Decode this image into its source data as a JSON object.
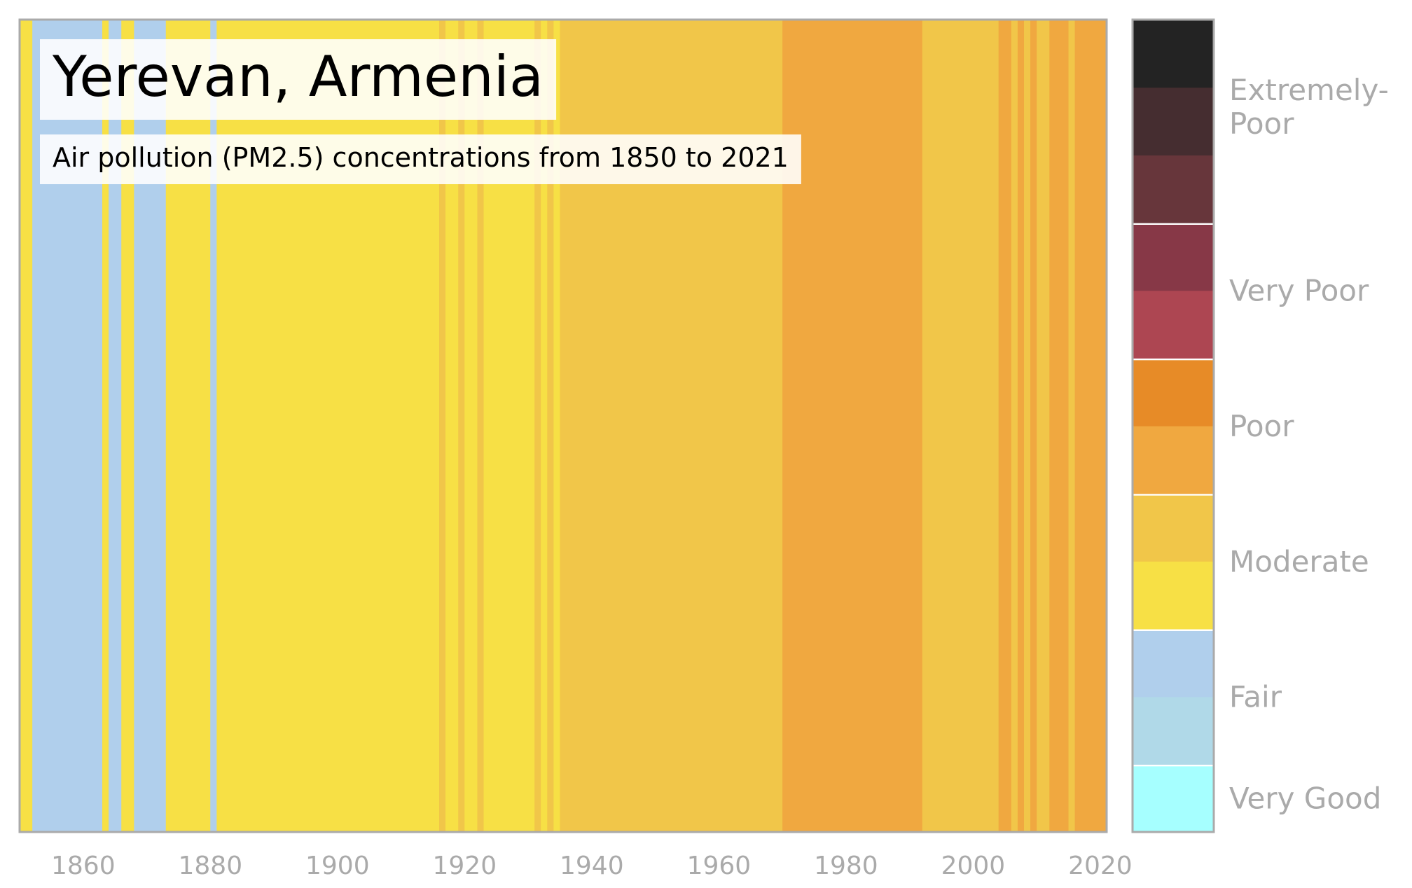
{
  "chart_data": {
    "type": "heatmap",
    "title": "Yerevan, Armenia",
    "subtitle": "Air pollution (PM2.5) concentrations from 1850 to 2021",
    "x_range": [
      1850,
      2021
    ],
    "xticks": [
      1860,
      1880,
      1900,
      1920,
      1940,
      1960,
      1980,
      2000,
      2020
    ],
    "grid": false,
    "legend_position": "right",
    "color_scale": [
      {
        "category": "Very Good",
        "colors": [
          "#a6ffff"
        ]
      },
      {
        "category": "Fair",
        "colors": [
          "#b0d9e8",
          "#b0cfec"
        ]
      },
      {
        "category": "Moderate",
        "colors": [
          "#f7e045",
          "#f1c649"
        ]
      },
      {
        "category": "Poor",
        "colors": [
          "#f0a840",
          "#e78b27"
        ]
      },
      {
        "category": "Very Poor",
        "colors": [
          "#ad4652",
          "#873847"
        ]
      },
      {
        "category": "Extremely-Poor",
        "colors": [
          "#67363b",
          "#452d30",
          "#232323"
        ]
      }
    ],
    "stripes": [
      {
        "start": 1850,
        "end": 1852,
        "category": "Moderate",
        "color": "#f7e045"
      },
      {
        "start": 1852,
        "end": 1863,
        "category": "Fair",
        "color": "#b0cfec"
      },
      {
        "start": 1863,
        "end": 1864,
        "category": "Moderate",
        "color": "#f7e045"
      },
      {
        "start": 1864,
        "end": 1866,
        "category": "Fair",
        "color": "#b0cfec"
      },
      {
        "start": 1866,
        "end": 1868,
        "category": "Moderate",
        "color": "#f7e045"
      },
      {
        "start": 1868,
        "end": 1873,
        "category": "Fair",
        "color": "#b0cfec"
      },
      {
        "start": 1873,
        "end": 1880,
        "category": "Moderate",
        "color": "#f7e045"
      },
      {
        "start": 1880,
        "end": 1881,
        "category": "Fair",
        "color": "#b0cfec"
      },
      {
        "start": 1881,
        "end": 1916,
        "category": "Moderate",
        "color": "#f7e045"
      },
      {
        "start": 1916,
        "end": 1917,
        "category": "Moderate",
        "color": "#f1c649"
      },
      {
        "start": 1917,
        "end": 1919,
        "category": "Moderate",
        "color": "#f7e045"
      },
      {
        "start": 1919,
        "end": 1920,
        "category": "Moderate",
        "color": "#f1c649"
      },
      {
        "start": 1920,
        "end": 1922,
        "category": "Moderate",
        "color": "#f7e045"
      },
      {
        "start": 1922,
        "end": 1923,
        "category": "Moderate",
        "color": "#f1c649"
      },
      {
        "start": 1923,
        "end": 1931,
        "category": "Moderate",
        "color": "#f7e045"
      },
      {
        "start": 1931,
        "end": 1932,
        "category": "Moderate",
        "color": "#f1c649"
      },
      {
        "start": 1932,
        "end": 1933,
        "category": "Moderate",
        "color": "#f7e045"
      },
      {
        "start": 1933,
        "end": 1934,
        "category": "Moderate",
        "color": "#f1c649"
      },
      {
        "start": 1934,
        "end": 1935,
        "category": "Moderate",
        "color": "#f7e045"
      },
      {
        "start": 1935,
        "end": 1970,
        "category": "Moderate",
        "color": "#f1c649"
      },
      {
        "start": 1970,
        "end": 1992,
        "category": "Poor",
        "color": "#f0a840"
      },
      {
        "start": 1992,
        "end": 2004,
        "category": "Moderate",
        "color": "#f1c649"
      },
      {
        "start": 2004,
        "end": 2006,
        "category": "Poor",
        "color": "#f0a840"
      },
      {
        "start": 2006,
        "end": 2007,
        "category": "Moderate",
        "color": "#f1c649"
      },
      {
        "start": 2007,
        "end": 2008,
        "category": "Poor",
        "color": "#f0a840"
      },
      {
        "start": 2008,
        "end": 2009,
        "category": "Moderate",
        "color": "#f1c649"
      },
      {
        "start": 2009,
        "end": 2010,
        "category": "Poor",
        "color": "#f0a840"
      },
      {
        "start": 2010,
        "end": 2012,
        "category": "Moderate",
        "color": "#f1c649"
      },
      {
        "start": 2012,
        "end": 2015,
        "category": "Poor",
        "color": "#f0a840"
      },
      {
        "start": 2015,
        "end": 2016,
        "category": "Moderate",
        "color": "#f1c649"
      },
      {
        "start": 2016,
        "end": 2021,
        "category": "Poor",
        "color": "#f0a840"
      }
    ]
  }
}
